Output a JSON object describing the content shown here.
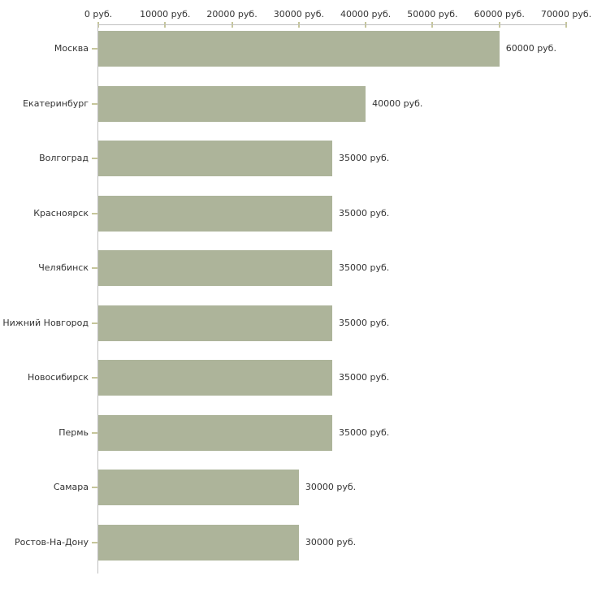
{
  "chart_data": {
    "type": "bar",
    "orientation": "horizontal",
    "title": "",
    "xlabel": "",
    "ylabel": "",
    "unit": "руб.",
    "xlim": [
      0,
      70000
    ],
    "grid": false,
    "legend": false,
    "categories": [
      "Москва",
      "Екатеринбург",
      "Волгоград",
      "Красноярск",
      "Челябинск",
      "Нижний Новгород",
      "Новосибирск",
      "Пермь",
      "Самара",
      "Ростов-На-Дону"
    ],
    "values": [
      60000,
      40000,
      35000,
      35000,
      35000,
      35000,
      35000,
      35000,
      30000,
      30000
    ],
    "value_labels": [
      "60000 руб.",
      "40000 руб.",
      "35000 руб.",
      "35000 руб.",
      "35000 руб.",
      "35000 руб.",
      "35000 руб.",
      "35000 руб.",
      "30000 руб.",
      "30000 руб."
    ],
    "x_tick_values": [
      0,
      10000,
      20000,
      30000,
      40000,
      50000,
      60000,
      70000
    ],
    "x_tick_labels": [
      "0 руб.",
      "10000 руб.",
      "20000 руб.",
      "30000 руб.",
      "40000 руб.",
      "50000 руб.",
      "60000 руб.",
      "70000 руб."
    ],
    "colors": {
      "bar": "#adb49a",
      "axis_line": "#c0c0c0",
      "tick_mark": "#c6c69b",
      "text": "#333333",
      "background": "#ffffff"
    }
  }
}
